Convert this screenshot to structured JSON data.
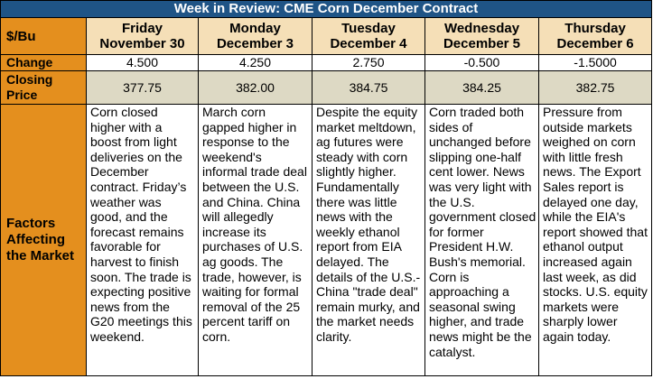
{
  "title": "Week in Review: CME Corn December Contract",
  "row_labels": {
    "unit": "$/Bu",
    "change": "Change",
    "closing_line1": "Closing",
    "closing_line2": "Price",
    "factors_line1": "Factors",
    "factors_line2": "Affecting",
    "factors_line3": "the Market"
  },
  "days": [
    {
      "weekday": "Friday",
      "date": "November 30",
      "change": "4.500",
      "closing": "377.75",
      "factors": "Corn closed higher with a boost from light deliveries on the December contract. Friday’s weather was good, and the forecast remains favorable for harvest to finish soon. The trade is expecting positive news from the G20 meetings this weekend."
    },
    {
      "weekday": "Monday",
      "date": "December 3",
      "change": "4.250",
      "closing": "382.00",
      "factors": "March corn gapped higher in response to the weekend's informal trade deal between the U.S. and China. China will allegedly increase its purchases of U.S. ag goods. The trade, however, is waiting for formal removal of the 25 percent tariff on corn."
    },
    {
      "weekday": "Tuesday",
      "date": "December 4",
      "change": "2.750",
      "closing": "384.75",
      "factors": "Despite the equity market meltdown, ag futures were steady with corn slightly higher. Fundamentally there was little news with the weekly ethanol report from EIA delayed. The details of the U.S.-China \"trade deal\" remain murky, and the market needs clarity."
    },
    {
      "weekday": "Wednesday",
      "date": "December 5",
      "change": "-0.500",
      "closing": "384.25",
      "factors": "Corn traded both sides of unchanged before slipping one-half cent lower. News was very light with the U.S. government closed for former President H.W. Bush's memorial. Corn is approaching a seasonal swing higher, and trade news might be the catalyst."
    },
    {
      "weekday": "Thursday",
      "date": "December 6",
      "change": "-1.5000",
      "closing": "382.75",
      "factors": "Pressure from outside markets weighed on corn with little fresh news. The Export Sales report is delayed one day, while the EIA's report showed that ethanol output increased again last week, as did stocks. U.S. equity markets were sharply lower again today."
    }
  ]
}
